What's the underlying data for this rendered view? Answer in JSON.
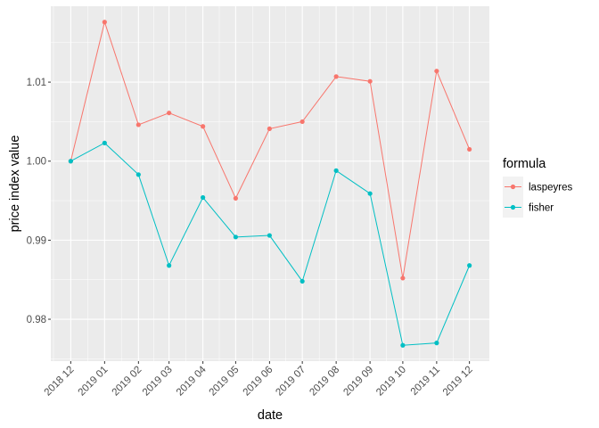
{
  "chart_data": {
    "type": "line",
    "xlabel": "date",
    "ylabel": "price index value",
    "x": [
      "2018-12-01",
      "2019-01-01",
      "2019-02-01",
      "2019-03-01",
      "2019-04-01",
      "2019-05-01",
      "2019-06-01",
      "2019-07-01",
      "2019-08-01",
      "2019-09-01",
      "2019-10-01",
      "2019-11-01",
      "2019-12-01"
    ],
    "tick_labels": [
      "2018 12",
      "2019 01",
      "2019 02",
      "2019 03",
      "2019 04",
      "2019 05",
      "2019 06",
      "2019 07",
      "2019 08",
      "2019 09",
      "2019 10",
      "2019 11",
      "2019 12"
    ],
    "yticks": [
      0.98,
      0.99,
      1.0,
      1.01
    ],
    "ytick_labels": [
      "0.98",
      "0.99",
      "1.00",
      "1.01"
    ],
    "ylim": [
      0.9747,
      1.0196
    ],
    "grid": true,
    "legend": {
      "title": "formula",
      "placement": "right"
    },
    "series": [
      {
        "name": "laspeyres",
        "color": "#F8766D",
        "values": [
          1.0,
          1.0176,
          1.0046,
          1.0061,
          1.0044,
          0.9953,
          1.0041,
          1.005,
          1.0107,
          1.0101,
          0.9852,
          1.0114,
          1.0015
        ]
      },
      {
        "name": "fisher",
        "color": "#00BFC4",
        "values": [
          1.0,
          1.0023,
          0.9983,
          0.9868,
          0.9954,
          0.9904,
          0.9906,
          0.9848,
          0.9988,
          0.9959,
          0.9767,
          0.977,
          0.9868
        ]
      }
    ]
  }
}
